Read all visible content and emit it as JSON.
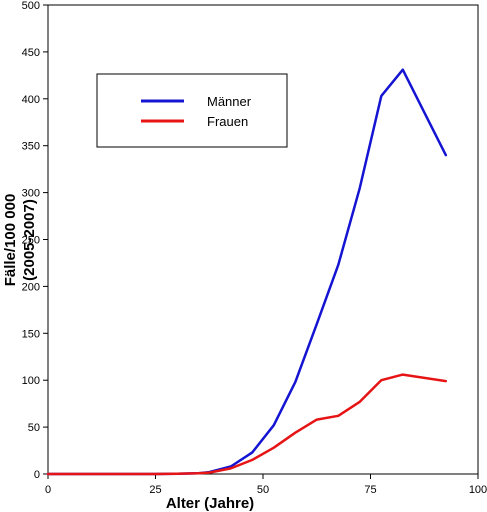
{
  "chart_data": {
    "type": "line",
    "title": "",
    "xlabel": "Alter (Jahre)",
    "ylabel_lines": [
      "Fälle/100 000",
      "(2005-2007)"
    ],
    "xlim": [
      0,
      100
    ],
    "ylim": [
      0,
      500
    ],
    "xticks": [
      0,
      25,
      50,
      75,
      100
    ],
    "yticks": [
      0,
      50,
      100,
      150,
      200,
      250,
      300,
      350,
      400,
      450,
      500
    ],
    "grid": false,
    "legend_position": "top-left",
    "series": [
      {
        "name": "Männer",
        "color": "#1414d2",
        "x": [
          0,
          5,
          10,
          15,
          20,
          25,
          30,
          35,
          37.5,
          42.5,
          47.5,
          52.5,
          57.5,
          62.5,
          67.5,
          72.5,
          77.5,
          82.5,
          92.5
        ],
        "y": [
          0,
          0,
          0,
          0,
          0,
          0,
          0.3,
          0.8,
          2,
          8,
          23,
          52,
          98,
          160,
          223,
          305,
          403,
          431,
          340
        ]
      },
      {
        "name": "Frauen",
        "color": "#e61414",
        "x": [
          0,
          5,
          10,
          15,
          20,
          25,
          30,
          35,
          37.5,
          42.5,
          47.5,
          52.5,
          57.5,
          62.5,
          67.5,
          72.5,
          77.5,
          82.5,
          92.5
        ],
        "y": [
          0,
          0,
          0,
          0,
          0,
          0,
          0.3,
          0.8,
          1.5,
          6,
          15,
          28,
          44,
          58,
          62,
          77,
          100,
          106,
          99
        ]
      }
    ]
  }
}
